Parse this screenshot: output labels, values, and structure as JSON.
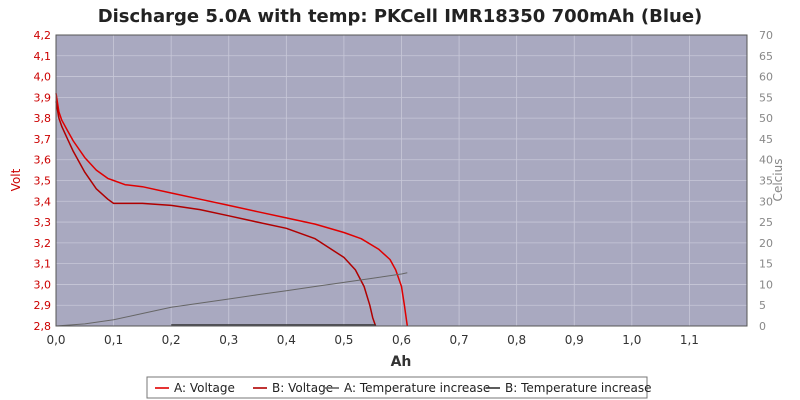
{
  "chart_data": {
    "type": "line",
    "title": "Discharge 5.0A with temp: PKCell IMR18350 700mAh (Blue)",
    "xlabel": "Ah",
    "ylabel_left": "Volt",
    "ylabel_right": "Celcius",
    "xlim": [
      0,
      1.2
    ],
    "ylim_left": [
      2.8,
      4.2
    ],
    "ylim_right": [
      0,
      70
    ],
    "x_ticks": [
      "0,0",
      "0,1",
      "0,2",
      "0,3",
      "0,4",
      "0,5",
      "0,6",
      "0,7",
      "0,8",
      "0,9",
      "1,0",
      "1,1"
    ],
    "y_left_ticks": [
      "2,8",
      "2,9",
      "3,0",
      "3,1",
      "3,2",
      "3,3",
      "3,4",
      "3,5",
      "3,6",
      "3,7",
      "3,8",
      "3,9",
      "4,0",
      "4,1",
      "4,2"
    ],
    "y_right_ticks": [
      "0",
      "5",
      "10",
      "15",
      "20",
      "25",
      "30",
      "35",
      "40",
      "45",
      "50",
      "55",
      "60",
      "65",
      "70"
    ],
    "grid": true,
    "legend_position": "bottom",
    "colors": {
      "plot_background": "#a9a9c0",
      "voltage_a": "#e00000",
      "voltage_b": "#b00000",
      "temp_a": "#666666",
      "temp_b": "#333333"
    },
    "series": [
      {
        "name": "A: Voltage",
        "axis": "left",
        "x": [
          0,
          0.005,
          0.01,
          0.02,
          0.03,
          0.05,
          0.07,
          0.09,
          0.1,
          0.12,
          0.15,
          0.2,
          0.25,
          0.3,
          0.35,
          0.4,
          0.45,
          0.5,
          0.53,
          0.56,
          0.58,
          0.59,
          0.6,
          0.605,
          0.61
        ],
        "y": [
          3.92,
          3.83,
          3.79,
          3.74,
          3.69,
          3.61,
          3.55,
          3.51,
          3.5,
          3.48,
          3.47,
          3.44,
          3.41,
          3.38,
          3.35,
          3.32,
          3.29,
          3.25,
          3.22,
          3.17,
          3.12,
          3.07,
          2.99,
          2.9,
          2.8
        ]
      },
      {
        "name": "B: Voltage",
        "axis": "left",
        "x": [
          0,
          0.005,
          0.01,
          0.02,
          0.03,
          0.05,
          0.07,
          0.09,
          0.1,
          0.12,
          0.15,
          0.2,
          0.25,
          0.3,
          0.35,
          0.4,
          0.45,
          0.5,
          0.52,
          0.535,
          0.545,
          0.55,
          0.555
        ],
        "y": [
          3.88,
          3.8,
          3.76,
          3.7,
          3.64,
          3.54,
          3.46,
          3.41,
          3.39,
          3.39,
          3.39,
          3.38,
          3.36,
          3.33,
          3.3,
          3.27,
          3.22,
          3.13,
          3.07,
          2.99,
          2.9,
          2.84,
          2.8
        ]
      },
      {
        "name": "A: Temperature increase",
        "axis": "right",
        "x": [
          0,
          0.05,
          0.1,
          0.15,
          0.2,
          0.25,
          0.3,
          0.35,
          0.4,
          0.45,
          0.5,
          0.55,
          0.6,
          0.61
        ],
        "y": [
          0,
          0.5,
          1.5,
          3,
          4.5,
          5.5,
          6.5,
          7.5,
          8.5,
          9.5,
          10.5,
          11.5,
          12.5,
          12.8
        ]
      },
      {
        "name": "B: Temperature increase",
        "axis": "right",
        "x": [
          0.2,
          0.3,
          0.4,
          0.5,
          0.555
        ],
        "y": [
          0.3,
          0.3,
          0.3,
          0.3,
          0.3
        ]
      }
    ]
  }
}
